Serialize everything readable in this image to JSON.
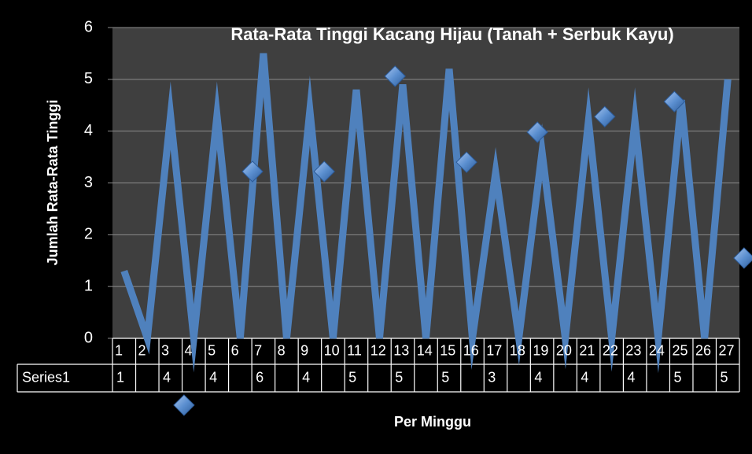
{
  "chart_data": {
    "type": "line",
    "title": "Rata-Rata Tinggi Kacang Hijau (Tanah + Serbuk Kayu)",
    "x_label": "Per Minggu",
    "y_label": "Jumlah Rata-Rata Tinggi",
    "categories": [
      "1",
      "2",
      "3",
      "4",
      "5",
      "6",
      "7",
      "8",
      "9",
      "10",
      "11",
      "12",
      "13",
      "14",
      "15",
      "16",
      "17",
      "18",
      "19",
      "20",
      "21",
      "22",
      "23",
      "24",
      "25",
      "26",
      "27"
    ],
    "series": [
      {
        "name": "Series1",
        "color": "#4f81bd",
        "values": [
          1.3,
          0,
          4.3,
          0,
          4.3,
          0,
          5.5,
          0,
          4.4,
          0,
          4.8,
          0,
          4.9,
          0,
          5.2,
          0,
          3.2,
          0,
          3.6,
          0,
          4.2,
          0,
          4.2,
          0,
          4.6,
          0,
          5.0
        ],
        "value_labels": [
          "1",
          null,
          "4",
          null,
          "4",
          null,
          "6",
          null,
          "4",
          null,
          "5",
          null,
          "5",
          null,
          "5",
          null,
          "3",
          null,
          "4",
          null,
          "4",
          null,
          "4",
          null,
          "5",
          null,
          "5"
        ]
      }
    ],
    "markers": {
      "color": "#5b8fd0",
      "x": [
        3.58,
        6.53,
        9.62,
        12.67,
        15.75,
        18.8,
        21.7,
        24.7,
        27.7
      ],
      "values": [
        -1.29,
        3.22,
        3.22,
        5.06,
        3.4,
        3.98,
        4.28,
        4.57,
        1.55
      ]
    },
    "ylim": [
      0,
      6
    ],
    "yticks": [
      0,
      1,
      2,
      3,
      4,
      5,
      6
    ],
    "grid": true
  }
}
